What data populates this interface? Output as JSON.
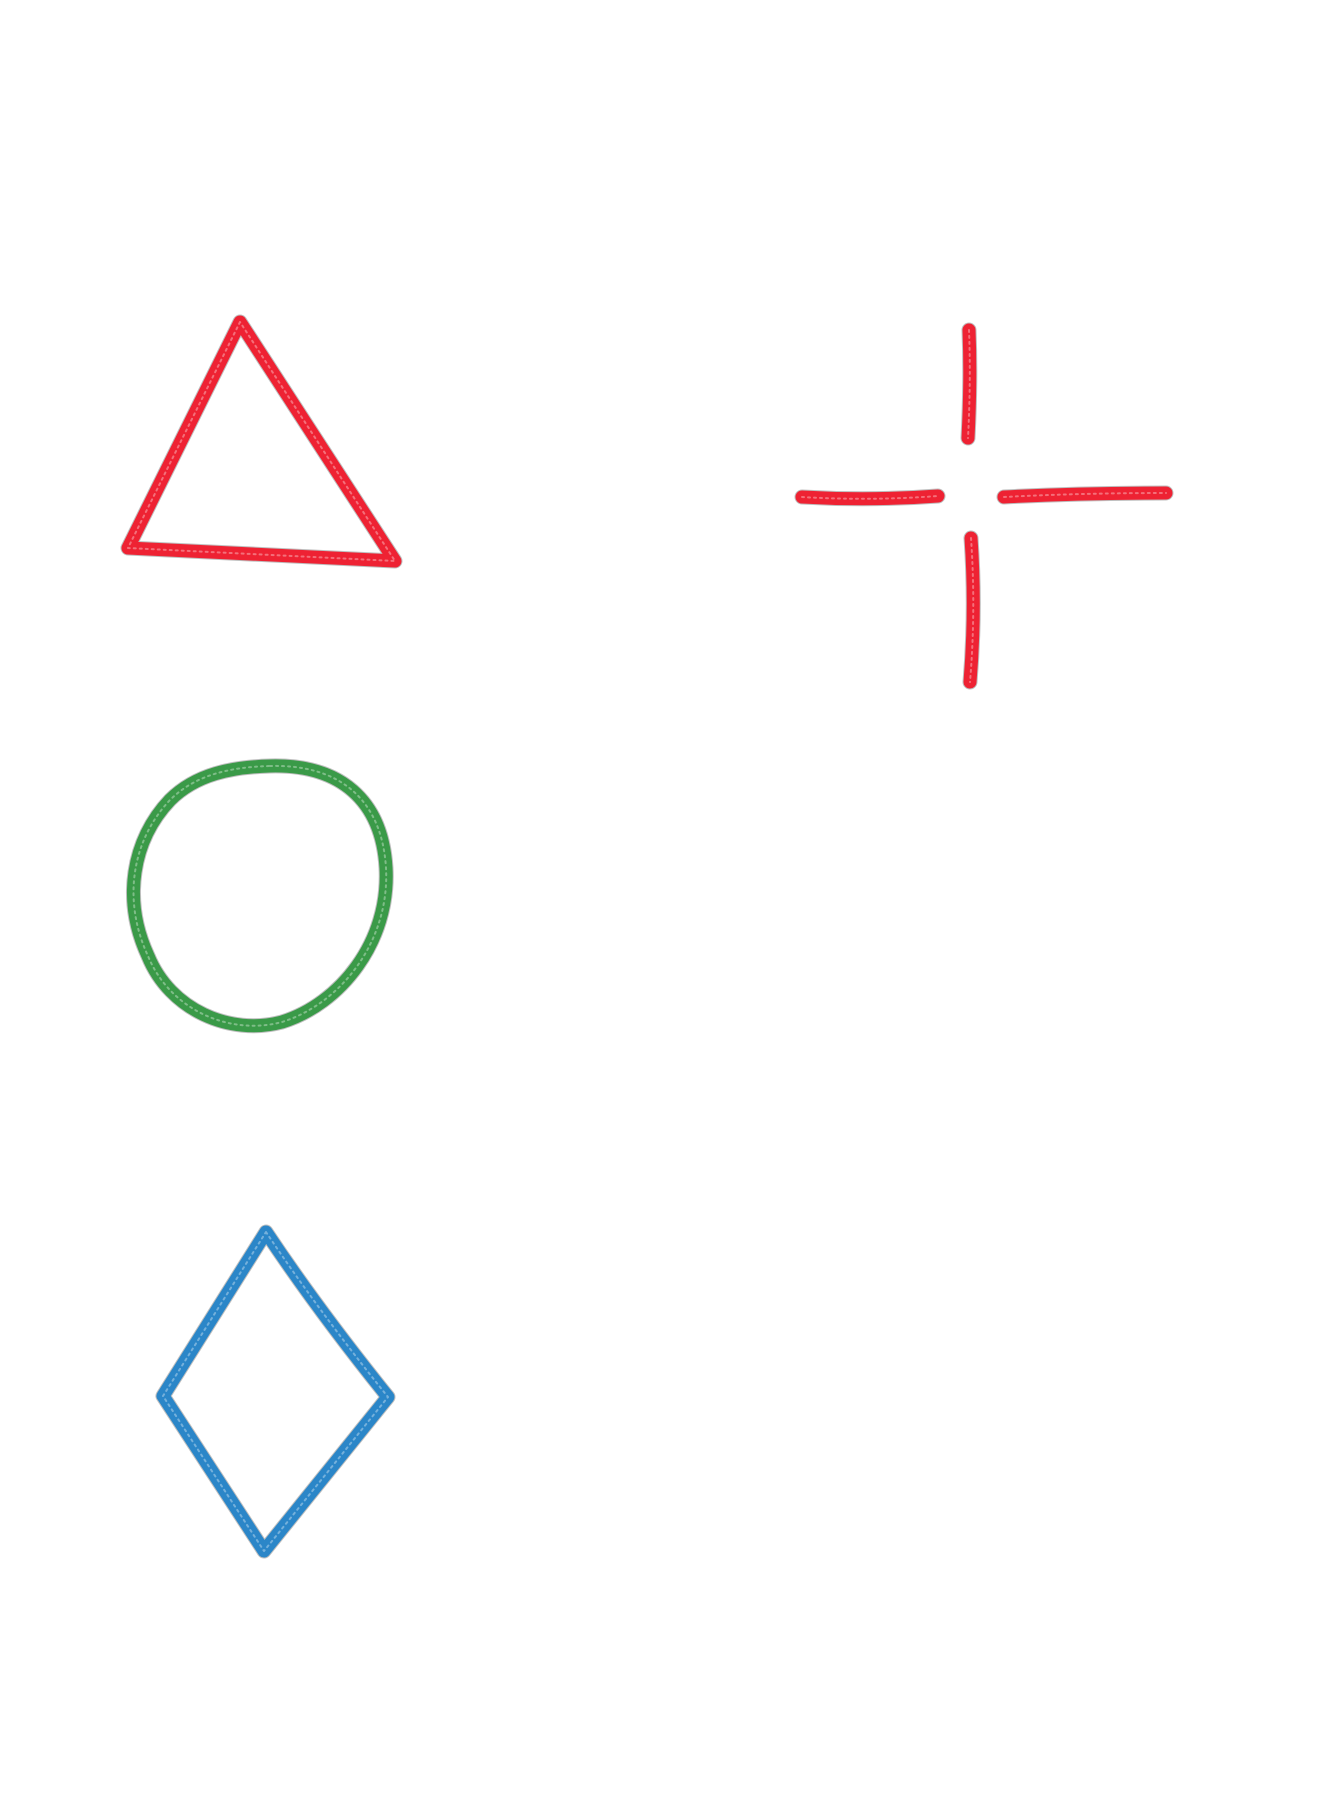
{
  "shapes": [
    {
      "id": "triangle",
      "kind": "triangle",
      "color": "#ee2233"
    },
    {
      "id": "crosshair",
      "kind": "crosshair",
      "color": "#ee2233"
    },
    {
      "id": "circle",
      "kind": "circle",
      "color": "#3a9a48"
    },
    {
      "id": "diamond",
      "kind": "diamond",
      "color": "#2b86c8"
    }
  ]
}
